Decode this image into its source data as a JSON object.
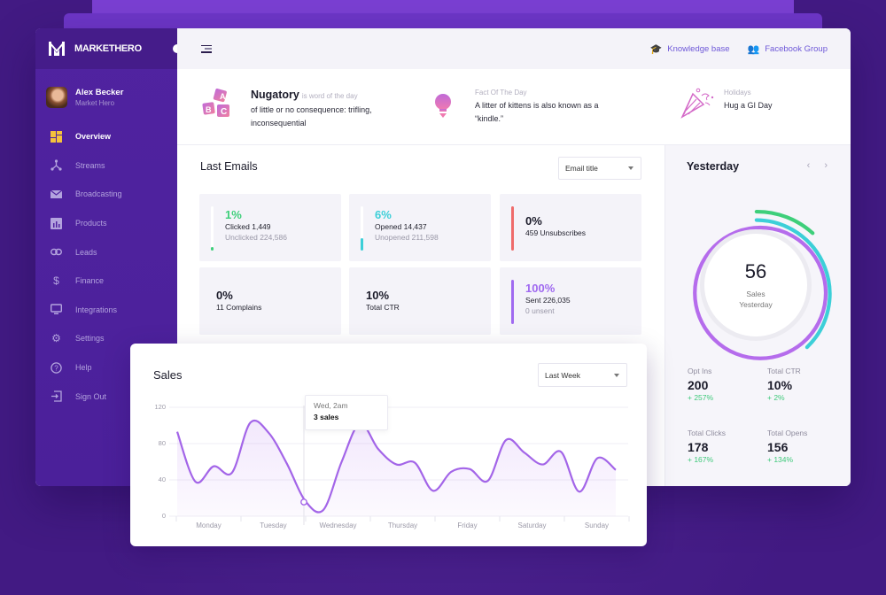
{
  "brand": {
    "name": "MARKETHERO"
  },
  "user": {
    "name": "Alex Becker",
    "role": "Market Hero"
  },
  "sidebar": {
    "items": [
      {
        "label": "Overview",
        "icon": "dashboard-icon",
        "active": true
      },
      {
        "label": "Streams",
        "icon": "streams-icon"
      },
      {
        "label": "Broadcasting",
        "icon": "envelope-icon"
      },
      {
        "label": "Products",
        "icon": "bar-chart-icon"
      },
      {
        "label": "Leads",
        "icon": "link-icon"
      },
      {
        "label": "Finance",
        "icon": "dollar-icon"
      },
      {
        "label": "Integrations",
        "icon": "monitor-icon"
      },
      {
        "label": "Settings",
        "icon": "gear-icon"
      },
      {
        "label": "Help",
        "icon": "help-icon"
      },
      {
        "label": "Sign Out",
        "icon": "sign-out-icon"
      }
    ]
  },
  "topbar": {
    "links": [
      {
        "label": "Knowledge base",
        "icon": "graduation-cap-icon"
      },
      {
        "label": "Facebook Group",
        "icon": "users-icon"
      }
    ]
  },
  "facts": {
    "word": {
      "word": "Nugatory",
      "suffix": "is word of the day",
      "definition_line1": "of little or no consequence: trifling,",
      "definition_line2": "inconsequential"
    },
    "fact": {
      "label": "Fact Of The Day",
      "line1": "A litter of kittens is also known as a",
      "line2": "“kindle.”"
    },
    "holiday": {
      "label": "Holidays",
      "text": "Hug a GI Day"
    }
  },
  "emails": {
    "title": "Last Emails",
    "select": "Email title",
    "cards": [
      {
        "pct": "1%",
        "line": "Clicked 1,449",
        "sub": "Unclicked 224,586",
        "color": "#3ecf7a",
        "fill": 2
      },
      {
        "pct": "6%",
        "line": "Opened 14,437",
        "sub": "Unopened 211,598",
        "color": "#3ccfd8",
        "fill": 12
      },
      {
        "pct": "0%",
        "line": "459 Unsubscribes",
        "sub": "",
        "color": "#ef6b6b",
        "fill": 100
      },
      {
        "pct": "0%",
        "line": "11 Complains",
        "sub": "",
        "color": "",
        "fill": 0
      },
      {
        "pct": "10%",
        "line": "Total CTR",
        "sub": "",
        "color": "",
        "fill": 0
      },
      {
        "pct": "100%",
        "line": "Sent 226,035",
        "sub": "0 unsent",
        "color": "#a06af0",
        "fill": 100
      }
    ]
  },
  "yesterday": {
    "title": "Yesterday",
    "value": "56",
    "label1": "Sales",
    "label2": "Yesterday",
    "colors": {
      "outer": "#3ecf7a",
      "middle": "#3ccfd8",
      "inner": "#a06af0"
    },
    "stats": [
      {
        "label": "Opt Ins",
        "value": "200",
        "delta": "+ 257%"
      },
      {
        "label": "Total CTR",
        "value": "10%",
        "delta": "+ 2%"
      },
      {
        "label": "Total Clicks",
        "value": "178",
        "delta": "+ 167%"
      },
      {
        "label": "Total Opens",
        "value": "156",
        "delta": "+ 134%"
      }
    ]
  },
  "sales": {
    "title": "Sales",
    "select": "Last Week",
    "tooltip": {
      "time": "Wed, 2am",
      "value": "3 sales"
    }
  },
  "chart_data": {
    "type": "area",
    "title": "Sales",
    "categories": [
      "Monday",
      "Tuesday",
      "Wednesday",
      "Thursday",
      "Friday",
      "Saturday",
      "Sunday"
    ],
    "yticks": [
      0,
      40,
      80,
      120
    ],
    "ylim": [
      0,
      120
    ],
    "grid": true,
    "series": [
      {
        "name": "Sales",
        "color": "#a365e8",
        "x": [
          0,
          0.25,
          0.5,
          0.75,
          1,
          1.25,
          1.5,
          1.75,
          2,
          2.25,
          2.5,
          2.75,
          3,
          3.25,
          3.5,
          3.75,
          4,
          4.25,
          4.5,
          4.75,
          5,
          5.25,
          5.5,
          5.75,
          6
        ],
        "values": [
          93,
          38,
          55,
          48,
          103,
          92,
          58,
          17,
          7,
          60,
          102,
          74,
          57,
          59,
          28,
          49,
          52,
          39,
          84,
          70,
          57,
          71,
          27,
          64,
          51
        ]
      }
    ],
    "annotation": {
      "label": "Wed, 2am",
      "value": "3 sales"
    }
  }
}
